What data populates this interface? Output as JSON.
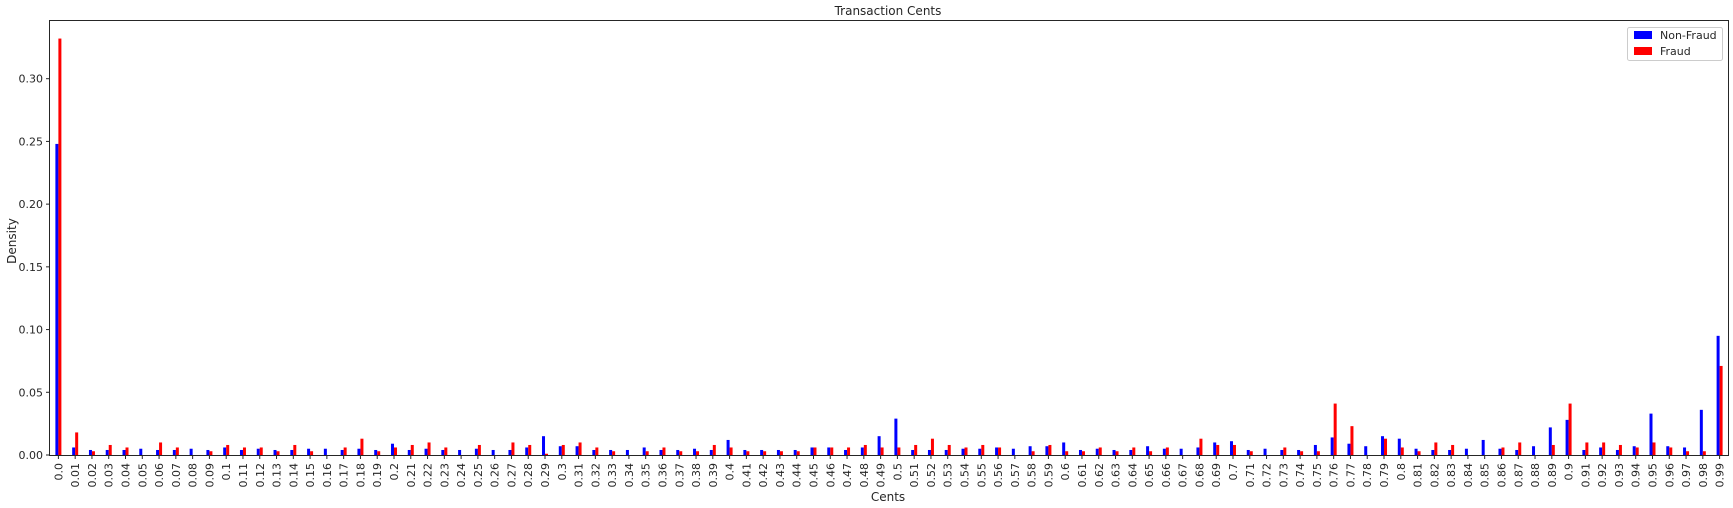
{
  "chart_data": {
    "type": "bar",
    "title": "Transaction Cents",
    "xlabel": "Cents",
    "ylabel": "Density",
    "ylim": [
      0,
      0.346
    ],
    "yticks": [
      0.0,
      0.05,
      0.1,
      0.15,
      0.2,
      0.25,
      0.3
    ],
    "ytick_labels": [
      "0.00",
      "0.05",
      "0.10",
      "0.15",
      "0.20",
      "0.25",
      "0.30"
    ],
    "grid": false,
    "legend_position": "top-right",
    "categories": [
      "0.0",
      "0.01",
      "0.02",
      "0.03",
      "0.04",
      "0.05",
      "0.06",
      "0.07",
      "0.08",
      "0.09",
      "0.1",
      "0.11",
      "0.12",
      "0.13",
      "0.14",
      "0.15",
      "0.16",
      "0.17",
      "0.18",
      "0.19",
      "0.2",
      "0.21",
      "0.22",
      "0.23",
      "0.24",
      "0.25",
      "0.26",
      "0.27",
      "0.28",
      "0.29",
      "0.3",
      "0.31",
      "0.32",
      "0.33",
      "0.34",
      "0.35",
      "0.36",
      "0.37",
      "0.38",
      "0.39",
      "0.4",
      "0.41",
      "0.42",
      "0.43",
      "0.44",
      "0.45",
      "0.46",
      "0.47",
      "0.48",
      "0.49",
      "0.5",
      "0.51",
      "0.52",
      "0.53",
      "0.54",
      "0.55",
      "0.56",
      "0.57",
      "0.58",
      "0.59",
      "0.6",
      "0.61",
      "0.62",
      "0.63",
      "0.64",
      "0.65",
      "0.66",
      "0.67",
      "0.68",
      "0.69",
      "0.7",
      "0.71",
      "0.72",
      "0.73",
      "0.74",
      "0.75",
      "0.76",
      "0.77",
      "0.78",
      "0.79",
      "0.8",
      "0.81",
      "0.82",
      "0.83",
      "0.84",
      "0.85",
      "0.86",
      "0.87",
      "0.88",
      "0.89",
      "0.9",
      "0.91",
      "0.92",
      "0.93",
      "0.94",
      "0.95",
      "0.96",
      "0.97",
      "0.98",
      "0.99"
    ],
    "series": [
      {
        "name": "Non-Fraud",
        "color": "#0000ff",
        "values": [
          0.248,
          0.006,
          0.004,
          0.004,
          0.004,
          0.005,
          0.004,
          0.004,
          0.005,
          0.004,
          0.006,
          0.004,
          0.005,
          0.004,
          0.004,
          0.005,
          0.005,
          0.004,
          0.005,
          0.004,
          0.009,
          0.004,
          0.005,
          0.004,
          0.004,
          0.005,
          0.004,
          0.004,
          0.006,
          0.015,
          0.007,
          0.007,
          0.004,
          0.004,
          0.004,
          0.006,
          0.004,
          0.004,
          0.005,
          0.004,
          0.012,
          0.004,
          0.004,
          0.004,
          0.004,
          0.006,
          0.006,
          0.004,
          0.006,
          0.015,
          0.029,
          0.004,
          0.004,
          0.004,
          0.005,
          0.005,
          0.006,
          0.005,
          0.007,
          0.007,
          0.01,
          0.004,
          0.005,
          0.004,
          0.004,
          0.007,
          0.005,
          0.005,
          0.006,
          0.01,
          0.011,
          0.004,
          0.005,
          0.004,
          0.004,
          0.008,
          0.014,
          0.009,
          0.007,
          0.015,
          0.013,
          0.005,
          0.004,
          0.004,
          0.005,
          0.012,
          0.005,
          0.004,
          0.007,
          0.022,
          0.028,
          0.004,
          0.006,
          0.004,
          0.007,
          0.033,
          0.007,
          0.006,
          0.036,
          0.095
        ]
      },
      {
        "name": "Fraud",
        "color": "#ff0000",
        "values": [
          0.332,
          0.018,
          0.003,
          0.008,
          0.006,
          0.0,
          0.01,
          0.006,
          0.0,
          0.003,
          0.008,
          0.006,
          0.006,
          0.003,
          0.008,
          0.003,
          0.0,
          0.006,
          0.013,
          0.003,
          0.006,
          0.008,
          0.01,
          0.006,
          0.0,
          0.008,
          0.0,
          0.01,
          0.008,
          0.001,
          0.008,
          0.01,
          0.006,
          0.003,
          0.0,
          0.003,
          0.006,
          0.003,
          0.003,
          0.008,
          0.006,
          0.003,
          0.003,
          0.003,
          0.003,
          0.006,
          0.006,
          0.006,
          0.008,
          0.006,
          0.006,
          0.008,
          0.013,
          0.008,
          0.006,
          0.008,
          0.006,
          0.0,
          0.003,
          0.008,
          0.003,
          0.003,
          0.006,
          0.003,
          0.006,
          0.003,
          0.006,
          0.0,
          0.013,
          0.008,
          0.008,
          0.003,
          0.0,
          0.006,
          0.003,
          0.003,
          0.041,
          0.023,
          0.0,
          0.013,
          0.006,
          0.003,
          0.01,
          0.008,
          0.0,
          0.0,
          0.006,
          0.01,
          0.0,
          0.008,
          0.041,
          0.01,
          0.01,
          0.008,
          0.006,
          0.01,
          0.006,
          0.003,
          0.003,
          0.071
        ]
      }
    ]
  }
}
